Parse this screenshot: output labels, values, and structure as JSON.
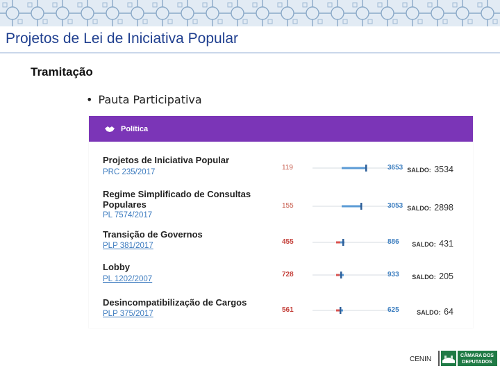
{
  "slide": {
    "title": "Projetos de Lei de Iniciativa Popular",
    "subtitle": "Tramitação",
    "bullet": "Pauta Participativa"
  },
  "panel": {
    "header_label": "Política",
    "header_color": "#7b35b7",
    "rows": [
      {
        "title": "Projetos de Iniciativa Popular",
        "code": "PRC 235/2017",
        "left_value": "119",
        "right_value": "3653",
        "saldo_label": "SALDO:",
        "saldo_value": "3534"
      },
      {
        "title": "Regime Simplificado de Consultas Populares",
        "code": "PL 7574/2017",
        "left_value": "155",
        "right_value": "3053",
        "saldo_label": "SALDO:",
        "saldo_value": "2898"
      },
      {
        "title": "Transição de Governos",
        "code": "PLP 381/2017",
        "left_value": "455",
        "right_value": "886",
        "saldo_label": "SALDO:",
        "saldo_value": "431"
      },
      {
        "title": "Lobby",
        "code": "PL 1202/2007",
        "left_value": "728",
        "right_value": "933",
        "saldo_label": "SALDO:",
        "saldo_value": "205"
      },
      {
        "title": "Desincompatibilização de Cargos",
        "code": "PLP 375/2017",
        "left_value": "561",
        "right_value": "625",
        "saldo_label": "SALDO:",
        "saldo_value": "64"
      }
    ]
  },
  "footer": {
    "label": "CENIN",
    "logo_line1": "CÂMARA DOS",
    "logo_line2": "DEPUTADOS",
    "logo_color": "#1f7a45"
  },
  "colors": {
    "title": "#1f3f8f",
    "blue_value": "#3e7fc0",
    "red_value": "#c4403a"
  }
}
